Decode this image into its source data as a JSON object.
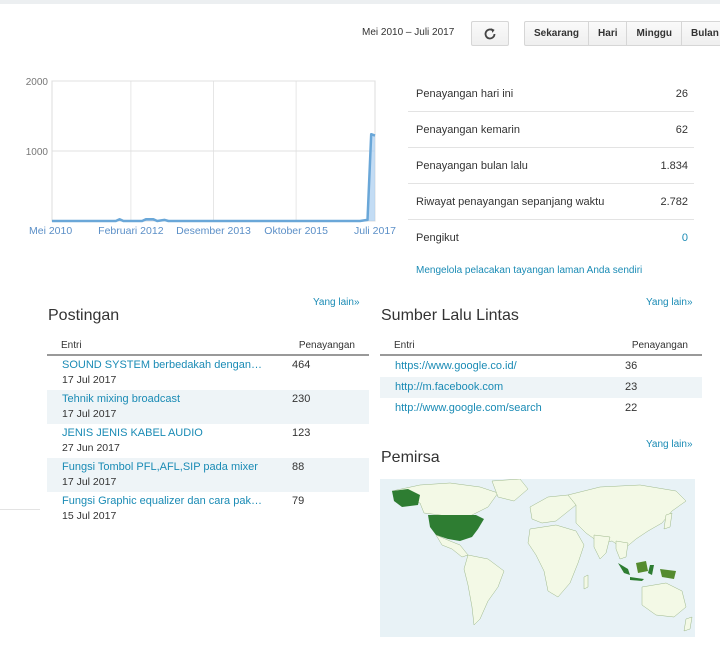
{
  "toolbar": {
    "date_range": "Mei 2010 – Juli 2017",
    "refresh_icon": "refresh-icon",
    "buttons": [
      "Sekarang",
      "Hari",
      "Minggu",
      "Bulan"
    ]
  },
  "chart_data": {
    "type": "area",
    "x_ticks": [
      "Mei 2010",
      "Februari 2012",
      "Desember 2013",
      "Oktober 2015",
      "Juli 2017"
    ],
    "y_ticks": [
      "2000",
      "1000"
    ],
    "ylim": [
      0,
      2000
    ],
    "color": "#6aa7d8",
    "series": [
      {
        "values": [
          {
            "x": "2010-05",
            "y": 0
          },
          {
            "x": "2011-10",
            "y": 0
          },
          {
            "x": "2011-11",
            "y": 25
          },
          {
            "x": "2011-12",
            "y": 0
          },
          {
            "x": "2012-05",
            "y": 0
          },
          {
            "x": "2012-06",
            "y": 25
          },
          {
            "x": "2012-08",
            "y": 25
          },
          {
            "x": "2012-09",
            "y": 0
          },
          {
            "x": "2012-11",
            "y": 15
          },
          {
            "x": "2012-12",
            "y": 0
          },
          {
            "x": "2017-03",
            "y": 0
          },
          {
            "x": "2017-05",
            "y": 15
          },
          {
            "x": "2017-06",
            "y": 1240
          },
          {
            "x": "2017-07",
            "y": 1220
          }
        ]
      }
    ]
  },
  "stats": [
    {
      "label": "Penayangan hari ini",
      "value": "26"
    },
    {
      "label": "Penayangan kemarin",
      "value": "62"
    },
    {
      "label": "Penayangan bulan lalu",
      "value": "1.834"
    },
    {
      "label": "Riwayat penayangan sepanjang waktu",
      "value": "2.782"
    },
    {
      "label": "Pengikut",
      "value": "0"
    }
  ],
  "manage_link": "Mengelola pelacakan tayangan laman Anda sendiri",
  "posts": {
    "title": "Postingan",
    "more": "Yang lain»",
    "col_entry": "Entri",
    "col_views": "Penayangan",
    "rows": [
      {
        "title": "SOUND SYSTEM berbedakah dengan PA system",
        "date": "17 Jul 2017",
        "views": "464"
      },
      {
        "title": "Tehnik mixing broadcast",
        "date": "17 Jul 2017",
        "views": "230"
      },
      {
        "title": "JENIS JENIS KABEL AUDIO",
        "date": "27 Jun 2017",
        "views": "123"
      },
      {
        "title": "Fungsi Tombol PFL,AFL,SIP pada mixer",
        "date": "17 Jul 2017",
        "views": "88"
      },
      {
        "title": "Fungsi Graphic equalizer dan cara pakainya",
        "date": "15 Jul 2017",
        "views": "79"
      }
    ]
  },
  "traffic": {
    "title": "Sumber Lalu Lintas",
    "more": "Yang lain»",
    "col_entry": "Entri",
    "col_views": "Penayangan",
    "rows": [
      {
        "url": "https://www.google.co.id/",
        "views": "36"
      },
      {
        "url": "http://m.facebook.com",
        "views": "23"
      },
      {
        "url": "http://www.google.com/search",
        "views": "22"
      }
    ]
  },
  "audience": {
    "title": "Pemirsa",
    "more": "Yang lain»",
    "land_color": "#f3f9e6",
    "ocean_color": "#e8f2f6",
    "highlight_colors": [
      "#2e7d32",
      "#558b2f"
    ]
  }
}
